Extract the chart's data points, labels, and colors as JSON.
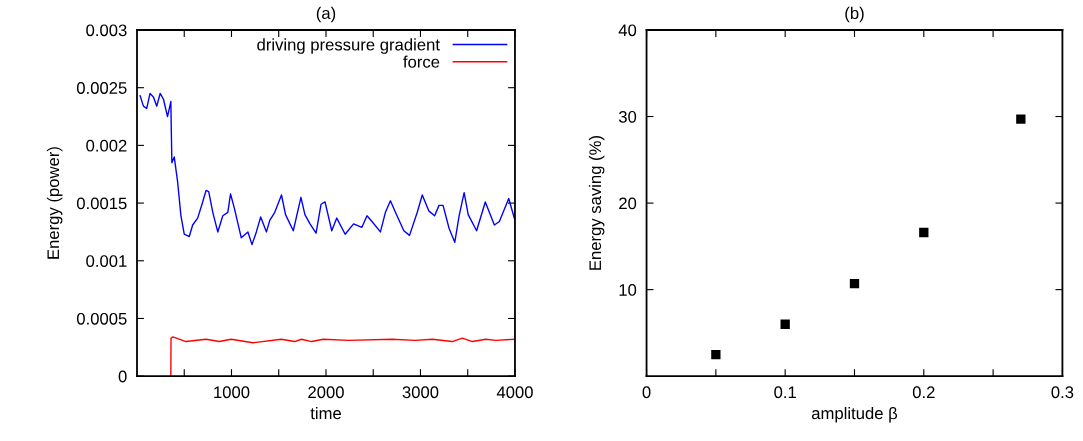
{
  "chart_data": [
    {
      "type": "line",
      "title": "(a)",
      "xlabel": "time",
      "ylabel": "Energy (power)",
      "xlim": [
        0,
        4000
      ],
      "ylim": [
        0,
        0.003
      ],
      "xticks": [
        {
          "value": 500,
          "label": null
        },
        1000,
        {
          "value": 1500,
          "label": null
        },
        2000,
        {
          "value": 2500,
          "label": null
        },
        3000,
        {
          "value": 3500,
          "label": null
        },
        4000
      ],
      "yticks": [
        0,
        0.0005,
        0.001,
        0.0015,
        0.002,
        0.0025,
        0.003
      ],
      "legend": "top right",
      "grid": false,
      "marker": "none",
      "line_style": "solid",
      "series": [
        {
          "name": "driving pressure gradient",
          "color": "#0000ff",
          "x": [
            33,
            68,
            103,
            138,
            174,
            209,
            245,
            280,
            323,
            358,
            369,
            394,
            429,
            465,
            500,
            553,
            589,
            642,
            695,
            731,
            759,
            802,
            855,
            908,
            961,
            990,
            1032,
            1103,
            1174,
            1217,
            1263,
            1309,
            1370,
            1405,
            1458,
            1529,
            1572,
            1654,
            1735,
            1777,
            1831,
            1895,
            1948,
            1990,
            2061,
            2114,
            2203,
            2292,
            2380,
            2434,
            2487,
            2576,
            2629,
            2682,
            2735,
            2824,
            2884,
            2966,
            3019,
            3090,
            3150,
            3196,
            3239,
            3303,
            3363,
            3409,
            3462,
            3505,
            3594,
            3686,
            3782,
            3835,
            3934,
            4000
          ],
          "values": [
            0.00243,
            0.00234,
            0.00232,
            0.00245,
            0.00242,
            0.00234,
            0.00245,
            0.0024,
            0.00225,
            0.00238,
            0.00185,
            0.0019,
            0.00169,
            0.00139,
            0.00123,
            0.00121,
            0.00131,
            0.00137,
            0.00151,
            0.00161,
            0.0016,
            0.00142,
            0.00125,
            0.00139,
            0.00142,
            0.00158,
            0.00145,
            0.0012,
            0.00125,
            0.00114,
            0.00125,
            0.00138,
            0.00125,
            0.00135,
            0.00142,
            0.00157,
            0.0014,
            0.00126,
            0.00155,
            0.0014,
            0.00132,
            0.00124,
            0.00149,
            0.00151,
            0.00126,
            0.00137,
            0.00123,
            0.00132,
            0.00129,
            0.00139,
            0.00134,
            0.00125,
            0.00142,
            0.00152,
            0.00142,
            0.00126,
            0.00122,
            0.00142,
            0.00157,
            0.00143,
            0.00139,
            0.00148,
            0.00148,
            0.00128,
            0.00116,
            0.00139,
            0.00159,
            0.0014,
            0.00126,
            0.00151,
            0.00131,
            0.00134,
            0.00154,
            0.00135
          ]
        },
        {
          "name": "force",
          "color": "#ff0000",
          "x": [
            358,
            360,
            380,
            518,
            731,
            872,
            996,
            1227,
            1528,
            1670,
            1741,
            1848,
            1972,
            2238,
            2699,
            2947,
            3124,
            3337,
            3443,
            3550,
            3692,
            3798,
            4000
          ],
          "values": [
            0,
            0.00033,
            0.00034,
            0.0003,
            0.00032,
            0.0003,
            0.00032,
            0.00029,
            0.00032,
            0.0003,
            0.00032,
            0.0003,
            0.00032,
            0.00031,
            0.00032,
            0.00031,
            0.00032,
            0.0003,
            0.00033,
            0.0003,
            0.00032,
            0.00031,
            0.00032
          ]
        }
      ]
    },
    {
      "type": "scatter",
      "title": "(b)",
      "xlabel": "amplitude β",
      "ylabel": "Energy saving (%)",
      "xlim": [
        0,
        0.3
      ],
      "ylim": [
        0,
        40
      ],
      "xticks": [
        0,
        {
          "value": 0.05,
          "label": null
        },
        0.1,
        {
          "value": 0.15,
          "label": null
        },
        0.2,
        {
          "value": 0.25,
          "label": null
        },
        0.3
      ],
      "yticks": [
        10,
        20,
        30,
        40
      ],
      "grid": false,
      "marker": "square",
      "series": [
        {
          "color": "#000000",
          "x": [
            0.05,
            0.1,
            0.15,
            0.2,
            0.27
          ],
          "values": [
            2.5,
            6,
            10.7,
            16.6,
            29.7
          ]
        }
      ]
    }
  ]
}
